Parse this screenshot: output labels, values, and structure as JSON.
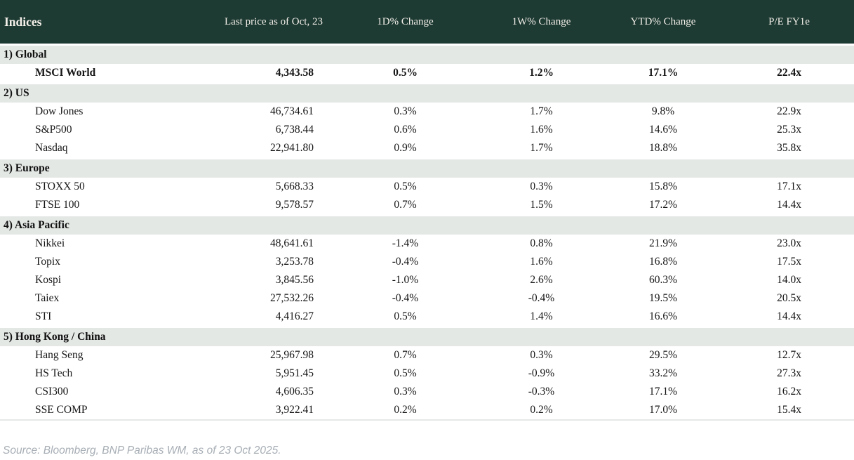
{
  "table": {
    "title": "Indices",
    "columns": [
      "Indices",
      "Last price as of Oct, 23",
      "1D% Change",
      "1W% Change",
      "YTD% Change",
      "P/E FY1e"
    ]
  },
  "sections": [
    {
      "label": "1) Global",
      "rows": [
        {
          "name": "MSCI World",
          "price": "4,343.58",
          "d1": "0.5%",
          "w1": "1.2%",
          "ytd": "17.1%",
          "pe": "22.4x",
          "bold": true
        }
      ]
    },
    {
      "label": "2) US",
      "rows": [
        {
          "name": "Dow Jones",
          "price": "46,734.61",
          "d1": "0.3%",
          "w1": "1.7%",
          "ytd": "9.8%",
          "pe": "22.9x"
        },
        {
          "name": "S&P500",
          "price": "6,738.44",
          "d1": "0.6%",
          "w1": "1.6%",
          "ytd": "14.6%",
          "pe": "25.3x"
        },
        {
          "name": "Nasdaq",
          "price": "22,941.80",
          "d1": "0.9%",
          "w1": "1.7%",
          "ytd": "18.8%",
          "pe": "35.8x"
        }
      ]
    },
    {
      "label": "3) Europe",
      "rows": [
        {
          "name": "STOXX 50",
          "price": "5,668.33",
          "d1": "0.5%",
          "w1": "0.3%",
          "ytd": "15.8%",
          "pe": "17.1x"
        },
        {
          "name": "FTSE 100",
          "price": "9,578.57",
          "d1": "0.7%",
          "w1": "1.5%",
          "ytd": "17.2%",
          "pe": "14.4x"
        }
      ]
    },
    {
      "label": "4) Asia Pacific",
      "rows": [
        {
          "name": "Nikkei",
          "price": "48,641.61",
          "d1": "-1.4%",
          "w1": "0.8%",
          "ytd": "21.9%",
          "pe": "23.0x"
        },
        {
          "name": "Topix",
          "price": "3,253.78",
          "d1": "-0.4%",
          "w1": "1.6%",
          "ytd": "16.8%",
          "pe": "17.5x"
        },
        {
          "name": "Kospi",
          "price": "3,845.56",
          "d1": "-1.0%",
          "w1": "2.6%",
          "ytd": "60.3%",
          "pe": "14.0x"
        },
        {
          "name": "Taiex",
          "price": "27,532.26",
          "d1": "-0.4%",
          "w1": "-0.4%",
          "ytd": "19.5%",
          "pe": "20.5x"
        },
        {
          "name": "STI",
          "price": "4,416.27",
          "d1": "0.5%",
          "w1": "1.4%",
          "ytd": "16.6%",
          "pe": "14.4x"
        }
      ]
    },
    {
      "label": "5) Hong Kong / China",
      "rows": [
        {
          "name": "Hang Seng",
          "price": "25,967.98",
          "d1": "0.7%",
          "w1": "0.3%",
          "ytd": "29.5%",
          "pe": "12.7x"
        },
        {
          "name": "HS Tech",
          "price": "5,951.45",
          "d1": "0.5%",
          "w1": "-0.9%",
          "ytd": "33.2%",
          "pe": "27.3x"
        },
        {
          "name": "CSI300",
          "price": "4,606.35",
          "d1": "0.3%",
          "w1": "-0.3%",
          "ytd": "17.1%",
          "pe": "16.2x"
        },
        {
          "name": "SSE COMP",
          "price": "3,922.41",
          "d1": "0.2%",
          "w1": "0.2%",
          "ytd": "17.0%",
          "pe": "15.4x"
        }
      ]
    }
  ],
  "footer": {
    "source": "Source: Bloomberg, BNP Paribas WM, as of 23 Oct 2025."
  },
  "colors": {
    "header_bg": "#1d3a33",
    "section_bg": "#e4e8e5",
    "positive": "#0f8a28",
    "negative": "#bf2b30"
  },
  "chart_data": {
    "type": "table",
    "title": "Indices",
    "columns": [
      "Indices",
      "Last price as of Oct, 23",
      "1D% Change",
      "1W% Change",
      "YTD% Change",
      "P/E FY1e"
    ],
    "rows": [
      [
        "1) Global",
        "",
        "",
        "",
        "",
        ""
      ],
      [
        "MSCI World",
        "4,343.58",
        "0.5%",
        "1.2%",
        "17.1%",
        "22.4x"
      ],
      [
        "2) US",
        "",
        "",
        "",
        "",
        ""
      ],
      [
        "Dow Jones",
        "46,734.61",
        "0.3%",
        "1.7%",
        "9.8%",
        "22.9x"
      ],
      [
        "S&P500",
        "6,738.44",
        "0.6%",
        "1.6%",
        "14.6%",
        "25.3x"
      ],
      [
        "Nasdaq",
        "22,941.80",
        "0.9%",
        "1.7%",
        "18.8%",
        "35.8x"
      ],
      [
        "3) Europe",
        "",
        "",
        "",
        "",
        ""
      ],
      [
        "STOXX 50",
        "5,668.33",
        "0.5%",
        "0.3%",
        "15.8%",
        "17.1x"
      ],
      [
        "FTSE 100",
        "9,578.57",
        "0.7%",
        "1.5%",
        "17.2%",
        "14.4x"
      ],
      [
        "4) Asia Pacific",
        "",
        "",
        "",
        "",
        ""
      ],
      [
        "Nikkei",
        "48,641.61",
        "-1.4%",
        "0.8%",
        "21.9%",
        "23.0x"
      ],
      [
        "Topix",
        "3,253.78",
        "-0.4%",
        "1.6%",
        "16.8%",
        "17.5x"
      ],
      [
        "Kospi",
        "3,845.56",
        "-1.0%",
        "2.6%",
        "60.3%",
        "14.0x"
      ],
      [
        "Taiex",
        "27,532.26",
        "-0.4%",
        "-0.4%",
        "19.5%",
        "20.5x"
      ],
      [
        "STI",
        "4,416.27",
        "0.5%",
        "1.4%",
        "16.6%",
        "14.4x"
      ],
      [
        "5) Hong Kong / China",
        "",
        "",
        "",
        "",
        ""
      ],
      [
        "Hang Seng",
        "25,967.98",
        "0.7%",
        "0.3%",
        "29.5%",
        "12.7x"
      ],
      [
        "HS Tech",
        "5,951.45",
        "0.5%",
        "-0.9%",
        "33.2%",
        "27.3x"
      ],
      [
        "CSI300",
        "4,606.35",
        "0.3%",
        "-0.3%",
        "17.1%",
        "16.2x"
      ],
      [
        "SSE COMP",
        "3,922.41",
        "0.2%",
        "0.2%",
        "17.0%",
        "15.4x"
      ]
    ],
    "notes": "Positive changes shown in green (#0f8a28), negative in red (#bf2b30); MSCI World row in bold"
  }
}
